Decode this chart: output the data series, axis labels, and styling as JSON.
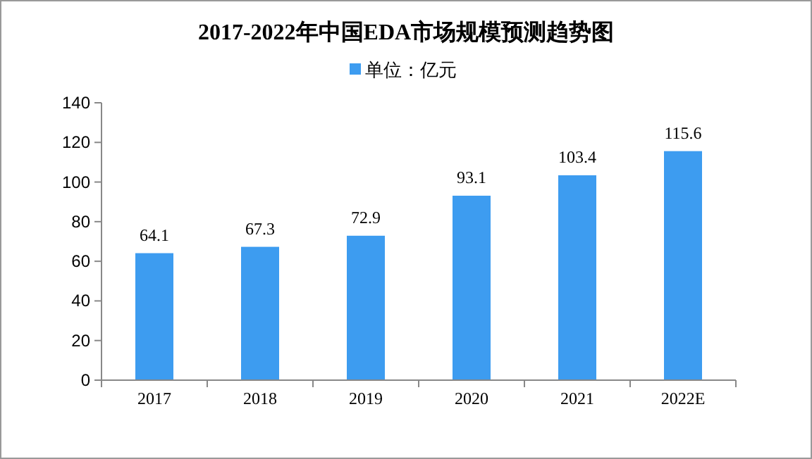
{
  "chart_data": {
    "type": "bar",
    "title": "2017-2022年中国EDA市场规模预测趋势图",
    "categories": [
      "2017",
      "2018",
      "2019",
      "2020",
      "2021",
      "2022E"
    ],
    "series": [
      {
        "name": "单位：亿元",
        "color": "#3d9cf0",
        "values": [
          64.1,
          67.3,
          72.9,
          93.1,
          103.4,
          115.6
        ]
      }
    ],
    "ylim": [
      0,
      140
    ],
    "yticks": [
      0,
      20,
      40,
      60,
      80,
      100,
      120,
      140
    ],
    "data_labels": true,
    "legend": "top"
  }
}
